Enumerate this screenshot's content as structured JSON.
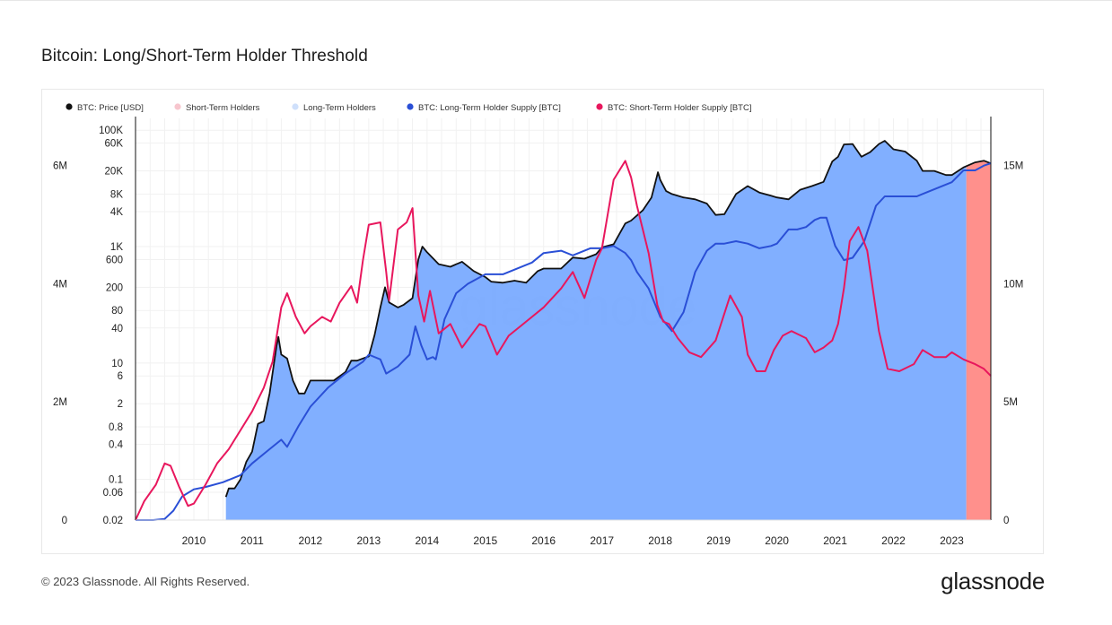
{
  "page": {
    "title": "Bitcoin: Long/Short-Term Holder Threshold",
    "footer": "© 2023 Glassnode. All Rights Reserved.",
    "brand": "glassnode",
    "watermark": "glassnode"
  },
  "chart_data": {
    "type": "area",
    "title": "Bitcoin: Long/Short-Term Holder Threshold",
    "x_ticks": [
      "2010",
      "2011",
      "2012",
      "2013",
      "2014",
      "2015",
      "2016",
      "2017",
      "2018",
      "2019",
      "2020",
      "2021",
      "2022",
      "2023"
    ],
    "x_range": [
      2009.0,
      2023.67
    ],
    "y_left_supply": {
      "ticks": [
        "0",
        "2M",
        "4M",
        "6M"
      ],
      "range": [
        0,
        6800000
      ]
    },
    "y_price": {
      "scale": "log",
      "ticks": [
        "0.02",
        "0.06",
        "0.1",
        "0.4",
        "0.8",
        "2",
        "6",
        "10",
        "40",
        "80",
        "200",
        "600",
        "1K",
        "4K",
        "8K",
        "20K",
        "60K",
        "100K"
      ],
      "range": [
        0.02,
        160000
      ]
    },
    "y_right_supply": {
      "ticks": [
        "0",
        "5M",
        "10M",
        "15M"
      ],
      "range": [
        0,
        17000000
      ]
    },
    "legend": {
      "placement": "top-left",
      "items": [
        {
          "label": "BTC: Price [USD]",
          "color": "#111111"
        },
        {
          "label": "Short-Term Holders",
          "color": "#f7c6ce"
        },
        {
          "label": "Long-Term Holders",
          "color": "#cfe0fb"
        },
        {
          "label": "BTC: Long-Term Holder Supply [BTC]",
          "color": "#2a4fd6"
        },
        {
          "label": "BTC: Short-Term Holder Supply [BTC]",
          "color": "#e8175d"
        }
      ]
    },
    "colors": {
      "lth_area": "#7aabff",
      "sth_area": "#ff8a86",
      "price": "#111111",
      "lth_supply": "#2a4fd6",
      "sth_supply": "#e8175d"
    },
    "regions": [
      {
        "name": "Long-Term Holders",
        "x_start": 2010.55,
        "x_end": 2023.25
      },
      {
        "name": "Short-Term Holders",
        "x_start": 2023.25,
        "x_end": 2023.67
      }
    ],
    "series": [
      {
        "name": "BTC: Price [USD]",
        "axis": "price",
        "x": [
          2010.55,
          2010.6,
          2010.7,
          2010.8,
          2010.9,
          2011.0,
          2011.1,
          2011.2,
          2011.3,
          2011.42,
          2011.45,
          2011.5,
          2011.6,
          2011.7,
          2011.8,
          2011.9,
          2012.0,
          2012.2,
          2012.4,
          2012.6,
          2012.7,
          2012.8,
          2013.0,
          2013.1,
          2013.2,
          2013.28,
          2013.35,
          2013.5,
          2013.6,
          2013.75,
          2013.85,
          2013.92,
          2014.0,
          2014.2,
          2014.4,
          2014.6,
          2014.8,
          2015.0,
          2015.1,
          2015.3,
          2015.5,
          2015.7,
          2015.9,
          2016.0,
          2016.3,
          2016.5,
          2016.7,
          2016.9,
          2017.0,
          2017.2,
          2017.4,
          2017.5,
          2017.7,
          2017.85,
          2017.96,
          2018.0,
          2018.1,
          2018.2,
          2018.4,
          2018.6,
          2018.8,
          2018.95,
          2019.1,
          2019.3,
          2019.5,
          2019.7,
          2019.9,
          2020.0,
          2020.2,
          2020.4,
          2020.6,
          2020.8,
          2020.95,
          2021.05,
          2021.15,
          2021.3,
          2021.45,
          2021.6,
          2021.75,
          2021.85,
          2022.0,
          2022.2,
          2022.4,
          2022.5,
          2022.7,
          2022.9,
          2023.0,
          2023.2,
          2023.4,
          2023.55,
          2023.67
        ],
        "y": [
          0.05,
          0.07,
          0.07,
          0.1,
          0.2,
          0.3,
          0.9,
          1,
          3,
          20,
          28,
          14,
          12,
          5,
          3,
          3,
          5,
          5,
          5,
          7,
          11,
          11,
          13,
          30,
          90,
          200,
          110,
          90,
          100,
          130,
          600,
          1000,
          800,
          500,
          450,
          550,
          380,
          300,
          250,
          240,
          260,
          240,
          380,
          420,
          420,
          650,
          620,
          740,
          970,
          1100,
          2500,
          2800,
          4200,
          7000,
          19000,
          14000,
          9000,
          8000,
          7000,
          6500,
          5500,
          3500,
          3600,
          8000,
          11000,
          8500,
          7500,
          7000,
          6500,
          9500,
          11000,
          13000,
          29000,
          35000,
          57000,
          58000,
          35000,
          42000,
          58000,
          66000,
          47000,
          43000,
          30000,
          20000,
          20000,
          17000,
          17000,
          23000,
          28000,
          30000,
          27000
        ]
      },
      {
        "name": "BTC: Long-Term Holder Supply [BTC]",
        "axis": "supply_right",
        "x": [
          2009.0,
          2009.3,
          2009.5,
          2009.65,
          2009.8,
          2010.0,
          2010.2,
          2010.5,
          2010.8,
          2011.0,
          2011.3,
          2011.5,
          2011.6,
          2011.8,
          2012.0,
          2012.3,
          2012.6,
          2012.9,
          2013.0,
          2013.2,
          2013.3,
          2013.5,
          2013.7,
          2013.8,
          2013.9,
          2014.0,
          2014.1,
          2014.15,
          2014.3,
          2014.5,
          2014.7,
          2015.0,
          2015.3,
          2015.5,
          2015.8,
          2016.0,
          2016.3,
          2016.5,
          2016.8,
          2017.0,
          2017.2,
          2017.4,
          2017.5,
          2017.6,
          2017.8,
          2018.0,
          2018.2,
          2018.4,
          2018.6,
          2018.8,
          2018.95,
          2019.1,
          2019.3,
          2019.5,
          2019.7,
          2019.9,
          2020.0,
          2020.2,
          2020.35,
          2020.5,
          2020.65,
          2020.75,
          2020.85,
          2021.0,
          2021.15,
          2021.3,
          2021.5,
          2021.7,
          2021.85,
          2022.0,
          2022.2,
          2022.4,
          2022.5,
          2022.7,
          2022.9,
          2023.0,
          2023.2,
          2023.4,
          2023.55,
          2023.67
        ],
        "y": [
          0,
          0,
          0.05,
          0.4,
          1.0,
          1.3,
          1.4,
          1.6,
          1.9,
          2.4,
          3.0,
          3.4,
          3.1,
          4.0,
          4.8,
          5.6,
          6.2,
          6.7,
          7.0,
          6.8,
          6.2,
          6.5,
          7.0,
          8.2,
          7.4,
          6.8,
          6.9,
          6.8,
          8.5,
          9.6,
          10.0,
          10.4,
          10.4,
          10.6,
          10.9,
          11.3,
          11.4,
          11.2,
          11.5,
          11.5,
          11.6,
          11.3,
          11.0,
          10.5,
          9.8,
          8.6,
          8.0,
          8.8,
          10.5,
          11.4,
          11.7,
          11.7,
          11.8,
          11.7,
          11.5,
          11.6,
          11.7,
          12.3,
          12.3,
          12.4,
          12.7,
          12.8,
          12.8,
          11.6,
          11.0,
          11.1,
          11.8,
          13.3,
          13.7,
          13.7,
          13.7,
          13.7,
          13.8,
          14.0,
          14.2,
          14.3,
          14.8,
          14.8,
          15.0,
          15.1
        ]
      },
      {
        "name": "BTC: Short-Term Holder Supply [BTC]",
        "axis": "supply_right",
        "x": [
          2009.0,
          2009.15,
          2009.35,
          2009.5,
          2009.6,
          2009.75,
          2009.9,
          2010.0,
          2010.2,
          2010.4,
          2010.6,
          2010.8,
          2011.0,
          2011.2,
          2011.35,
          2011.5,
          2011.6,
          2011.75,
          2011.9,
          2012.0,
          2012.2,
          2012.35,
          2012.5,
          2012.7,
          2012.8,
          2012.9,
          2013.0,
          2013.2,
          2013.3,
          2013.35,
          2013.5,
          2013.65,
          2013.75,
          2013.85,
          2013.95,
          2014.05,
          2014.2,
          2014.4,
          2014.6,
          2014.9,
          2015.0,
          2015.2,
          2015.4,
          2015.6,
          2015.8,
          2016.0,
          2016.3,
          2016.5,
          2016.7,
          2016.9,
          2017.0,
          2017.2,
          2017.4,
          2017.5,
          2017.6,
          2017.8,
          2017.95,
          2018.05,
          2018.15,
          2018.3,
          2018.5,
          2018.7,
          2018.95,
          2019.2,
          2019.4,
          2019.5,
          2019.65,
          2019.8,
          2019.95,
          2020.1,
          2020.25,
          2020.5,
          2020.65,
          2020.8,
          2020.95,
          2021.05,
          2021.15,
          2021.25,
          2021.4,
          2021.55,
          2021.75,
          2021.9,
          2022.1,
          2022.35,
          2022.5,
          2022.7,
          2022.9,
          2023.0,
          2023.2,
          2023.4,
          2023.55,
          2023.67
        ],
        "y": [
          0,
          0.8,
          1.5,
          2.4,
          2.3,
          1.4,
          0.6,
          0.7,
          1.5,
          2.4,
          3.0,
          3.8,
          4.6,
          5.6,
          6.7,
          9.0,
          9.6,
          8.6,
          7.9,
          8.2,
          8.6,
          8.4,
          9.2,
          9.9,
          9.2,
          11.0,
          12.5,
          12.6,
          10.5,
          9.3,
          12.3,
          12.6,
          13.2,
          9.5,
          8.4,
          9.7,
          7.9,
          8.3,
          7.3,
          8.3,
          8.2,
          7.0,
          7.8,
          8.2,
          8.6,
          9.0,
          9.8,
          10.5,
          9.4,
          11.0,
          11.5,
          14.4,
          15.2,
          14.5,
          13.3,
          11.3,
          9.1,
          8.4,
          8.3,
          7.7,
          7.1,
          6.9,
          7.6,
          9.5,
          8.6,
          7.0,
          6.3,
          6.3,
          7.2,
          7.8,
          8.0,
          7.7,
          7.1,
          7.3,
          7.6,
          8.3,
          9.8,
          11.8,
          12.4,
          11.4,
          8.0,
          6.4,
          6.3,
          6.6,
          7.2,
          6.9,
          6.9,
          7.1,
          6.8,
          6.6,
          6.4,
          6.1
        ]
      }
    ]
  }
}
